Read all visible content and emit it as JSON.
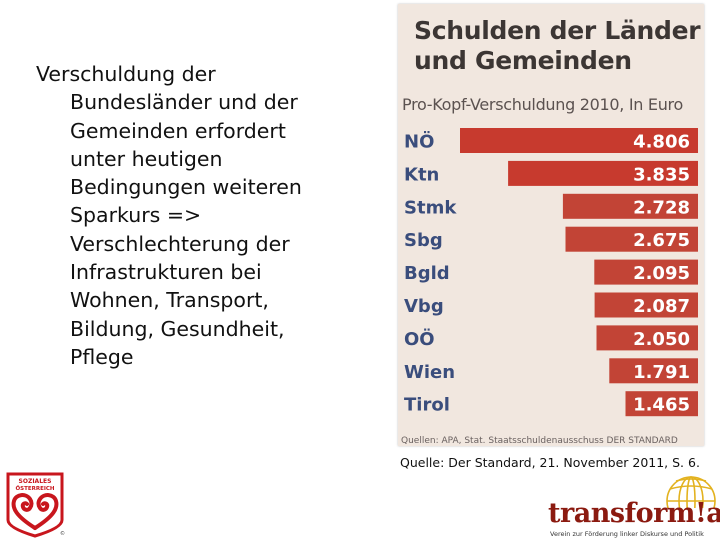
{
  "slide": {
    "text_lines": [
      "Verschuldung der",
      "Bundesländer und der",
      "Gemeinden erfordert",
      "unter heutigen",
      "Bedingungen weiteren",
      "Sparkurs =>",
      "Verschlechterung der",
      "Infrastrukturen  bei",
      "Wohnen, Transport,",
      "Bildung, Gesundheit,",
      "Pflege"
    ],
    "citation": "Quelle: Der Standard, 21. November 2011,  S. 6."
  },
  "clipping": {
    "title_line1": "Schulden der Länder",
    "title_line2": "und Gemeinden",
    "subtitle": "Pro-Kopf-Verschuldung 2010, In Euro",
    "source_note": "Quellen: APA, Stat. Staatsschuldenausschuss DER STANDARD"
  },
  "chart_data": {
    "type": "bar",
    "orientation": "horizontal",
    "title": "Schulden der Länder und Gemeinden",
    "subtitle": "Pro-Kopf-Verschuldung 2010, In Euro",
    "categories": [
      "NÖ",
      "Ktn",
      "Stmk",
      "Sbg",
      "Bgld",
      "Vbg",
      "OÖ",
      "Wien",
      "Tirol"
    ],
    "values": [
      4806,
      3835,
      2728,
      2675,
      2095,
      2087,
      2050,
      1791,
      1465
    ],
    "value_labels": [
      "4.806",
      "3.835",
      "2.728",
      "2.675",
      "2.095",
      "2.087",
      "2.050",
      "1.791",
      "1.465"
    ],
    "xlim": [
      0,
      4806
    ],
    "grid": false,
    "legend": "none",
    "colors": {
      "top_bars": "#c73a2e",
      "other_bars": "#c24436",
      "category_text": "#3a4d7c",
      "value_text": "#ffffff",
      "paper": "#f1e7df"
    }
  },
  "logos": {
    "left": {
      "lettering": "SOZIALES ÖSTERREICH",
      "color": "#c8161d"
    },
    "right": {
      "brand": "transform!at",
      "tagline": "Verein zur Förderung linker Diskurse und Politik",
      "color": "#8b1a10",
      "globe_color": "#e3b21f"
    }
  }
}
